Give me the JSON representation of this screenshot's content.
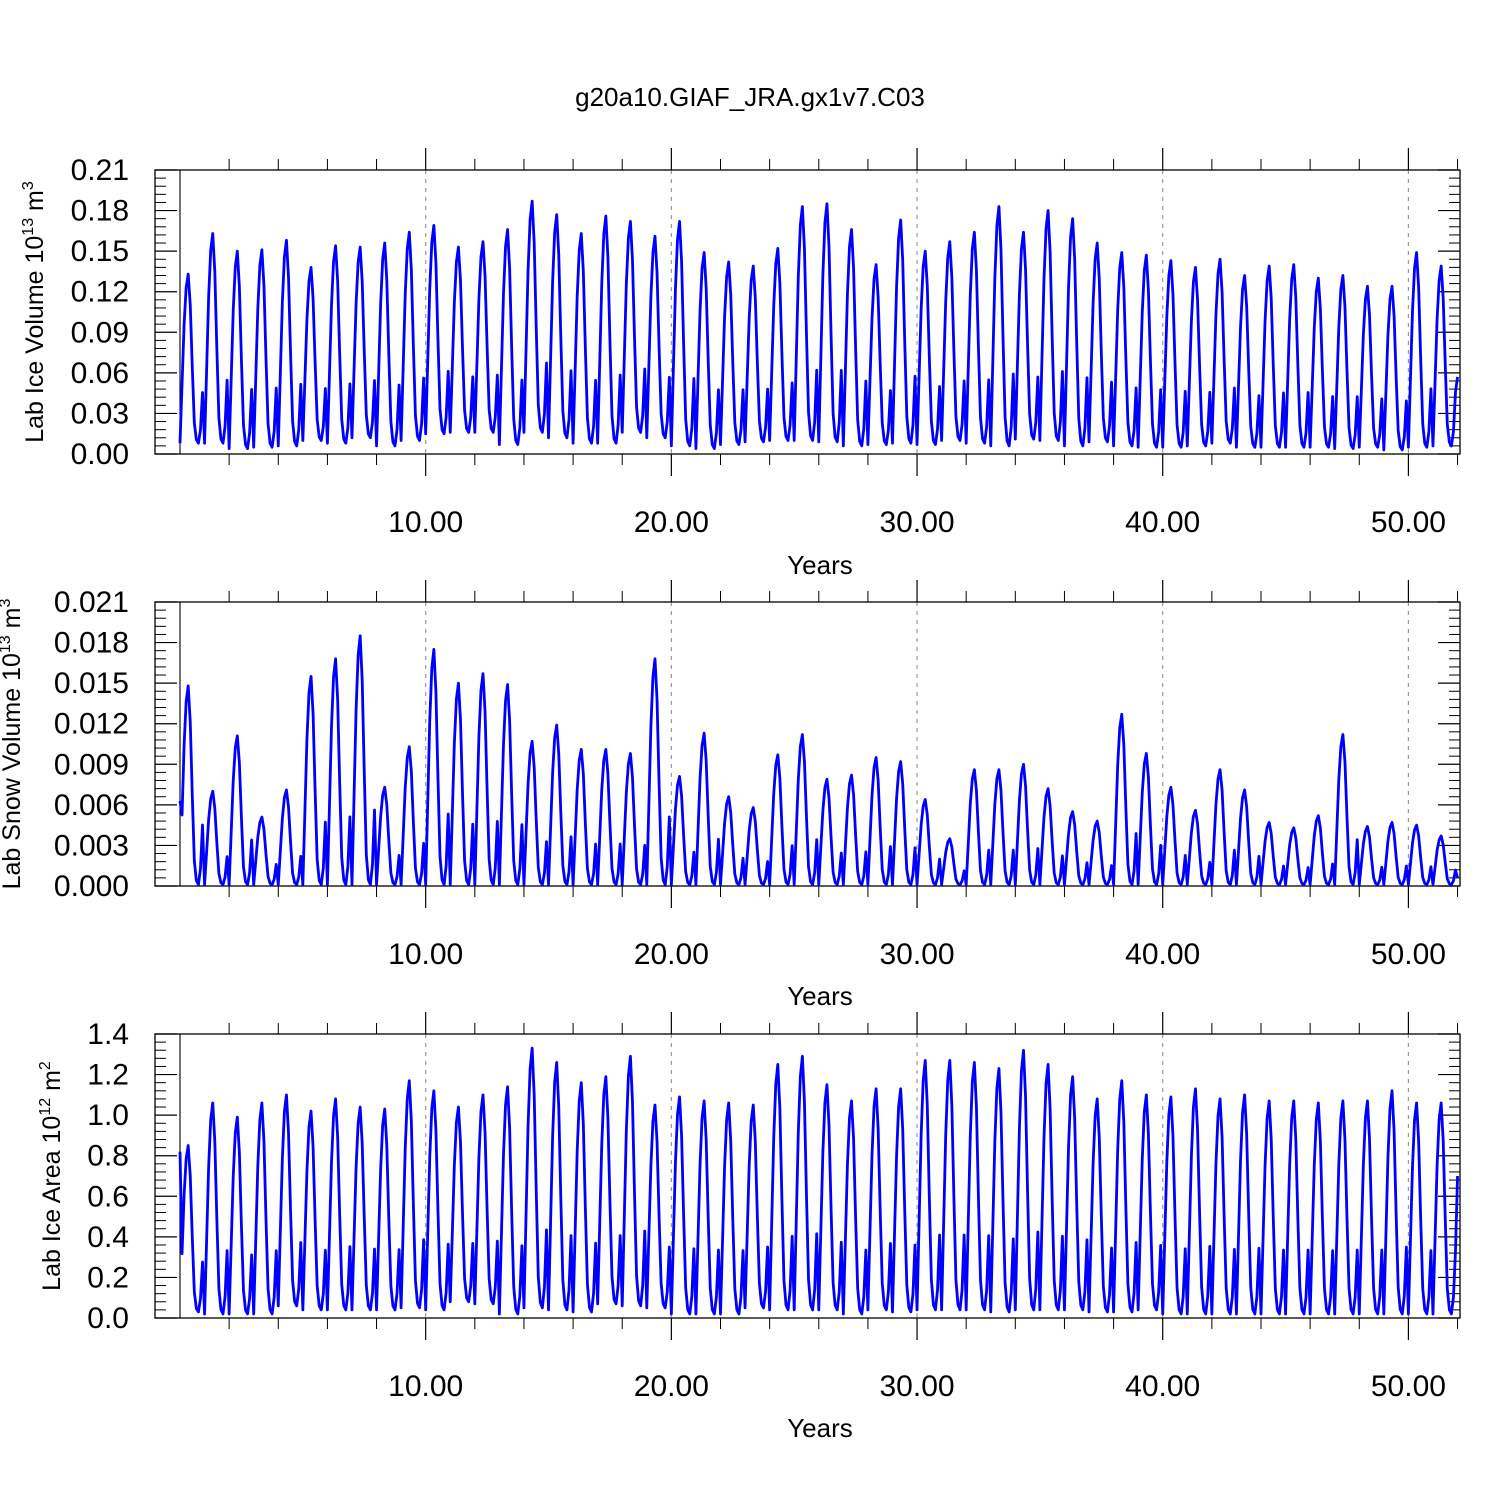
{
  "page_title": "g20a10.GIAF_JRA.gx1v7.C03",
  "colors": {
    "series": "#0000ff",
    "axis": "#000000",
    "guide": "#999999",
    "background": "#ffffff"
  },
  "chart_data": [
    {
      "type": "line",
      "title": "g20a10.GIAF_JRA.gx1v7.C03",
      "xlabel": "Years",
      "ylabel": {
        "base": "Lab Ice Volume 10",
        "exp1": "13",
        "mid": " m",
        "exp2": "3"
      },
      "xlim": [
        0,
        52.1
      ],
      "ylim": [
        0,
        0.21
      ],
      "xticks": [
        10,
        20,
        30,
        40,
        50
      ],
      "xtick_labels": [
        "10.00",
        "20.00",
        "30.00",
        "40.00",
        "50.00"
      ],
      "yticks": [
        0,
        0.03,
        0.06,
        0.09,
        0.12,
        0.15,
        0.18,
        0.21
      ],
      "ytick_labels": [
        "0.00",
        "0.03",
        "0.06",
        "0.09",
        "0.12",
        "0.15",
        "0.18",
        "0.21"
      ],
      "grid": "dashed vertical lines at x ticks",
      "legend": "none",
      "series": [
        {
          "color": "#0000ff",
          "start_year": 0.0,
          "step_years": 0.0833333,
          "cycle": "monthly; per-year peak and trough listed",
          "annual_peaks": [
            0.133,
            0.163,
            0.15,
            0.151,
            0.158,
            0.138,
            0.154,
            0.153,
            0.156,
            0.164,
            0.169,
            0.153,
            0.157,
            0.166,
            0.187,
            0.177,
            0.163,
            0.176,
            0.172,
            0.161,
            0.172,
            0.149,
            0.142,
            0.139,
            0.152,
            0.183,
            0.185,
            0.166,
            0.14,
            0.173,
            0.15,
            0.157,
            0.164,
            0.183,
            0.164,
            0.18,
            0.174,
            0.156,
            0.149,
            0.147,
            0.143,
            0.138,
            0.144,
            0.132,
            0.139,
            0.14,
            0.13,
            0.132,
            0.124,
            0.124,
            0.149,
            0.139
          ],
          "annual_troughs": [
            0.008,
            0.008,
            0.004,
            0.005,
            0.006,
            0.01,
            0.008,
            0.012,
            0.006,
            0.01,
            0.015,
            0.016,
            0.016,
            0.007,
            0.016,
            0.012,
            0.008,
            0.008,
            0.016,
            0.012,
            0.006,
            0.004,
            0.007,
            0.009,
            0.01,
            0.01,
            0.009,
            0.006,
            0.007,
            0.008,
            0.007,
            0.01,
            0.008,
            0.006,
            0.011,
            0.01,
            0.006,
            0.009,
            0.006,
            0.005,
            0.005,
            0.006,
            0.008,
            0.005,
            0.005,
            0.005,
            0.005,
            0.004,
            0.005,
            0.003,
            0.005,
            0.006
          ],
          "final_value": 0.057
        }
      ]
    },
    {
      "type": "line",
      "xlabel": "Years",
      "ylabel": {
        "base": "Lab Snow Volume 10",
        "exp1": "13",
        "mid": " m",
        "exp2": "3"
      },
      "xlim": [
        0,
        52.1
      ],
      "ylim": [
        0,
        0.021
      ],
      "xticks": [
        10,
        20,
        30,
        40,
        50
      ],
      "xtick_labels": [
        "10.00",
        "20.00",
        "30.00",
        "40.00",
        "50.00"
      ],
      "yticks": [
        0,
        0.003,
        0.006,
        0.009,
        0.012,
        0.015,
        0.018,
        0.021
      ],
      "ytick_labels": [
        "0.000",
        "0.003",
        "0.006",
        "0.009",
        "0.012",
        "0.015",
        "0.018",
        "0.021"
      ],
      "grid": "dashed vertical lines at x ticks",
      "legend": "none",
      "series": [
        {
          "color": "#0000ff",
          "start_year": 0.0,
          "step_years": 0.0833333,
          "cycle": "monthly; per-year peak and trough listed",
          "annual_peaks": [
            0.0148,
            0.007,
            0.0111,
            0.0051,
            0.0071,
            0.0155,
            0.0168,
            0.0185,
            0.0073,
            0.0103,
            0.0175,
            0.015,
            0.0157,
            0.0149,
            0.0107,
            0.0119,
            0.0101,
            0.0101,
            0.0098,
            0.0168,
            0.0081,
            0.0113,
            0.0066,
            0.0058,
            0.0097,
            0.0112,
            0.0079,
            0.0082,
            0.0095,
            0.0092,
            0.0064,
            0.0035,
            0.0086,
            0.0086,
            0.009,
            0.0072,
            0.0055,
            0.0048,
            0.0127,
            0.0098,
            0.0073,
            0.0056,
            0.0086,
            0.0071,
            0.0047,
            0.0043,
            0.0052,
            0.0112,
            0.0044,
            0.0047,
            0.0045,
            0.0037
          ],
          "annual_troughs": [
            0.0001,
            0.0001,
            0.0001,
            0.0001,
            0.0001,
            0.0001,
            0.0001,
            0.0001,
            0.0001,
            0.0001,
            0.0001,
            0.0001,
            0.0001,
            0.0001,
            0.0001,
            0.0001,
            0.0001,
            0.0001,
            0.0001,
            0.0001,
            0.0001,
            0.0001,
            0.0001,
            0.0001,
            0.0001,
            0.0001,
            0.0001,
            0.0001,
            0.0001,
            0.0001,
            0.0001,
            0.0001,
            0.0001,
            0.0001,
            0.0001,
            0.0001,
            0.0001,
            0.0001,
            0.0001,
            0.0001,
            0.0001,
            0.0001,
            0.0001,
            0.0001,
            0.0001,
            0.0001,
            0.0001,
            0.0001,
            0.0001,
            0.0001,
            0.0001,
            0.0001
          ],
          "first_value": 0.0063,
          "final_value": 0.0006
        }
      ]
    },
    {
      "type": "line",
      "xlabel": "Years",
      "ylabel": {
        "base": "Lab Ice Area 10",
        "exp1": "12",
        "mid": " m",
        "exp2": "2"
      },
      "xlim": [
        0,
        52.1
      ],
      "ylim": [
        0,
        1.4
      ],
      "xticks": [
        10,
        20,
        30,
        40,
        50
      ],
      "xtick_labels": [
        "10.00",
        "20.00",
        "30.00",
        "40.00",
        "50.00"
      ],
      "yticks": [
        0,
        0.2,
        0.4,
        0.6,
        0.8,
        1.0,
        1.2,
        1.4
      ],
      "ytick_labels": [
        "0.0",
        "0.2",
        "0.4",
        "0.6",
        "0.8",
        "1.0",
        "1.2",
        "1.4"
      ],
      "grid": "dashed vertical lines at x ticks",
      "legend": "none",
      "series": [
        {
          "color": "#0000ff",
          "start_year": 0.0,
          "step_years": 0.0833333,
          "cycle": "monthly; per-year peak and trough listed",
          "annual_peaks": [
            0.85,
            1.06,
            0.99,
            1.06,
            1.1,
            1.02,
            1.08,
            1.04,
            1.03,
            1.17,
            1.12,
            1.04,
            1.1,
            1.14,
            1.33,
            1.26,
            1.16,
            1.19,
            1.29,
            1.05,
            1.09,
            1.07,
            1.06,
            1.05,
            1.25,
            1.29,
            1.15,
            1.07,
            1.13,
            1.13,
            1.27,
            1.27,
            1.26,
            1.23,
            1.32,
            1.25,
            1.19,
            1.08,
            1.17,
            1.1,
            1.09,
            1.13,
            1.08,
            1.1,
            1.07,
            1.07,
            1.06,
            1.07,
            1.07,
            1.12,
            1.06,
            1.06
          ],
          "annual_troughs": [
            0.03,
            0.02,
            0.02,
            0.02,
            0.06,
            0.04,
            0.04,
            0.04,
            0.04,
            0.05,
            0.04,
            0.08,
            0.07,
            0.02,
            0.05,
            0.04,
            0.03,
            0.07,
            0.06,
            0.05,
            0.02,
            0.02,
            0.02,
            0.05,
            0.04,
            0.04,
            0.04,
            0.02,
            0.04,
            0.03,
            0.04,
            0.04,
            0.04,
            0.03,
            0.04,
            0.04,
            0.04,
            0.03,
            0.03,
            0.04,
            0.02,
            0.02,
            0.02,
            0.02,
            0.02,
            0.02,
            0.02,
            0.02,
            0.02,
            0.02,
            0.02,
            0.02
          ],
          "first_value": 0.82,
          "final_value": 0.7
        }
      ]
    }
  ]
}
